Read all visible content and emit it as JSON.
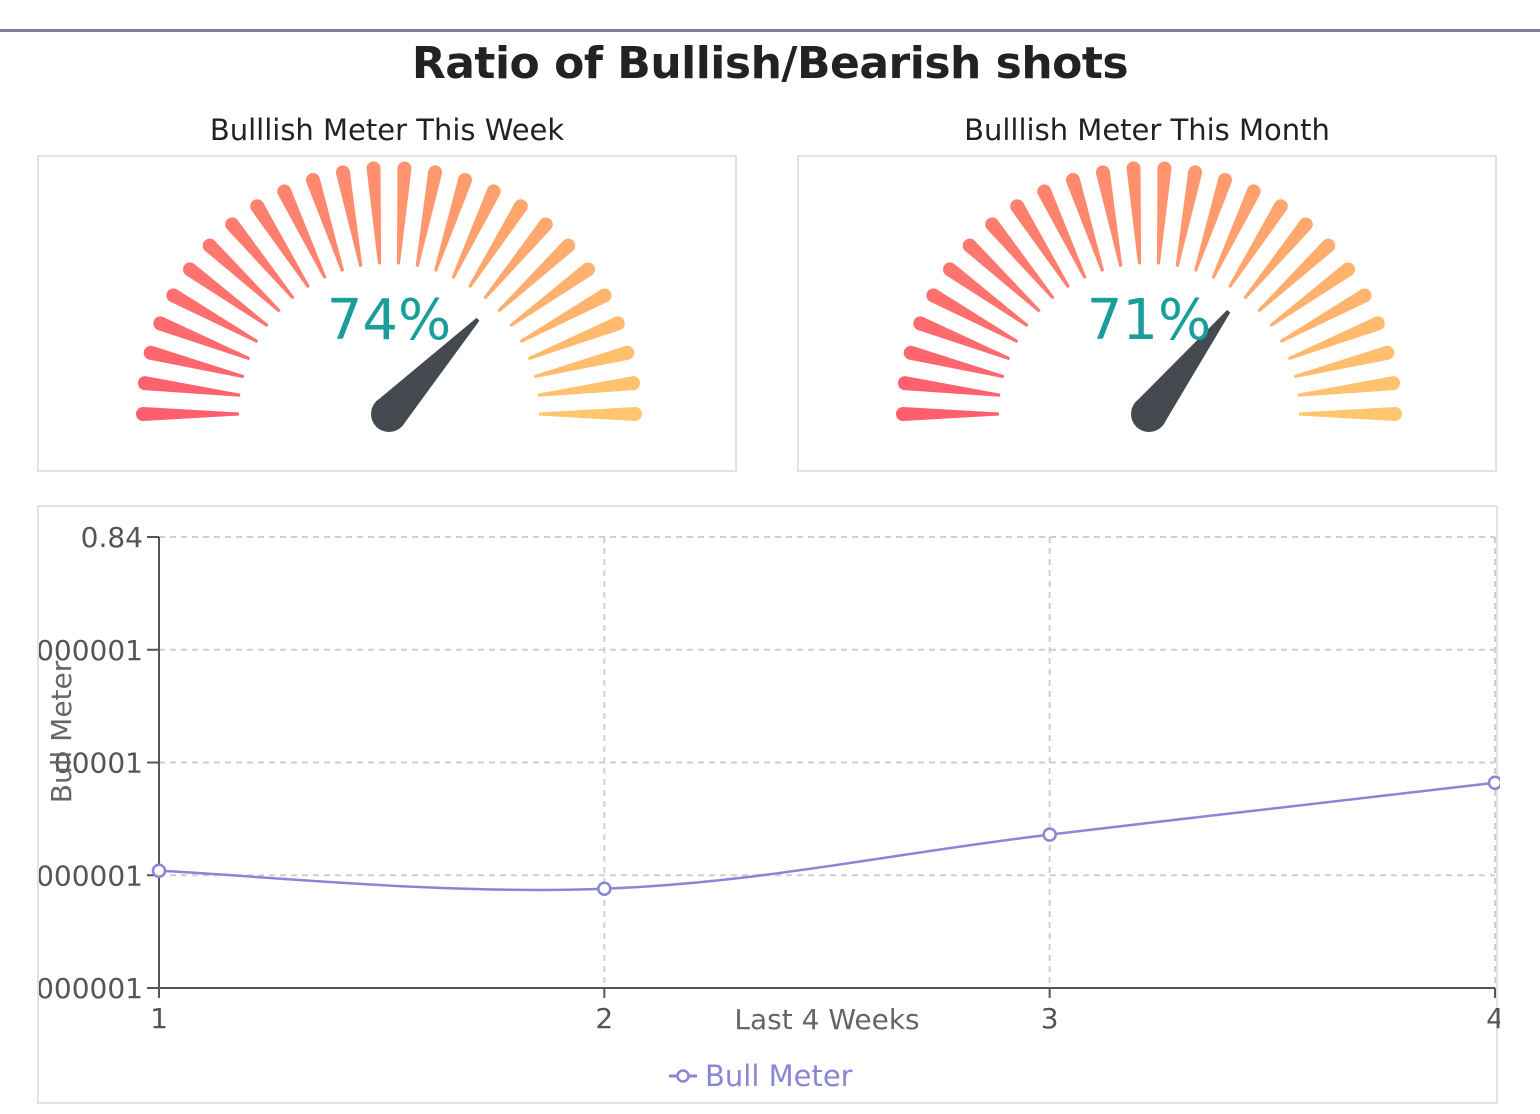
{
  "page": {
    "title": "Ratio of Bullish/Bearish shots"
  },
  "colors": {
    "gauge_start": "#ff5e6e",
    "gauge_end": "#ffc66e",
    "gauge_value": "#1a9e9b",
    "needle": "#454a50",
    "line": "#8a86d6",
    "grid": "#cfcfcf",
    "axis": "#555555"
  },
  "chart_data": [
    {
      "type": "gauge",
      "title": "Bulllish Meter This Week",
      "value": 74,
      "value_label": "74%",
      "min": 0,
      "max": 100
    },
    {
      "type": "gauge",
      "title": "Bulllish Meter This Month",
      "value": 71,
      "value_label": "71%",
      "min": 0,
      "max": 100
    },
    {
      "type": "line",
      "x": [
        1,
        2,
        3,
        4
      ],
      "x_tick_labels": [
        "1",
        "2",
        "3",
        "4"
      ],
      "series": [
        {
          "name": "Bull Meter",
          "values": [
            0.692,
            0.684,
            0.708,
            0.731
          ]
        }
      ],
      "ylim": [
        0.64,
        0.84
      ],
      "y_tick_labels": [
        "000001",
        "000001",
        "00001",
        "000001",
        "0.84"
      ],
      "xlabel": "Last 4 Weeks",
      "ylabel": "Bull Meter",
      "grid": true,
      "smooth": true,
      "legend": "bottom-center"
    }
  ]
}
